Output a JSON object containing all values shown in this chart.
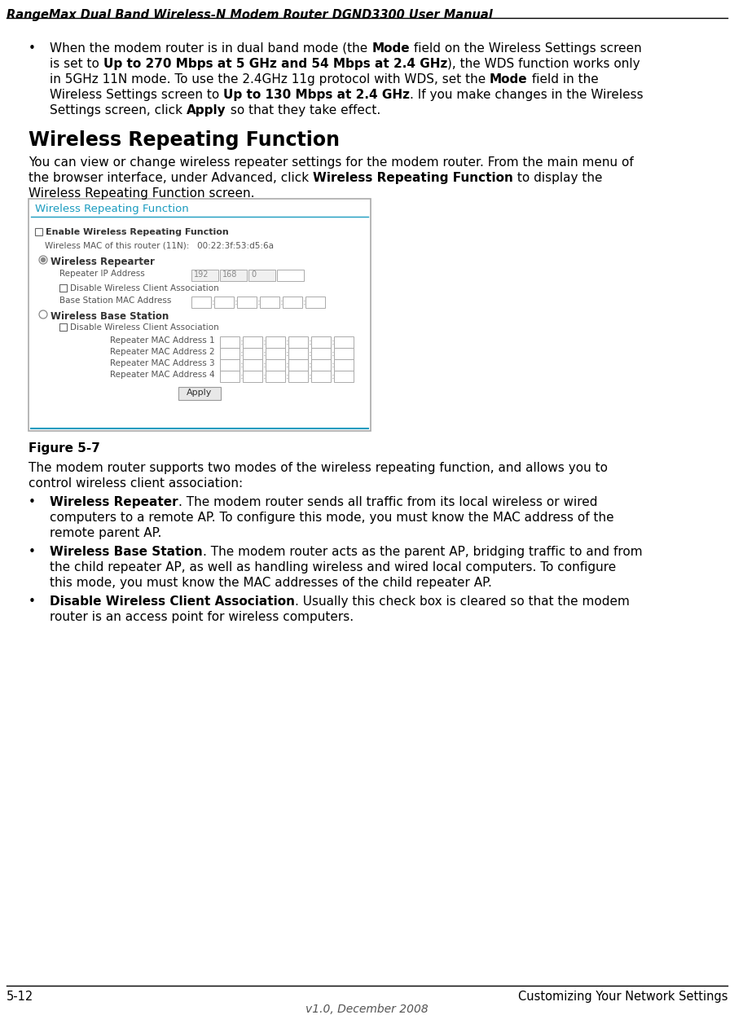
{
  "title_header": "RangeMax Dual Band Wireless-N Modem Router DGND3300 User Manual",
  "footer_left": "5-12",
  "footer_right": "Customizing Your Network Settings",
  "footer_center": "v1.0, December 2008",
  "section_title": "Wireless Repeating Function",
  "figure_label": "Figure 5-7",
  "bg_color": "#ffffff",
  "text_color": "#000000",
  "box_title_color": "#1a9bbf",
  "box_border_color": "#999999",
  "lm": 45,
  "rm": 870,
  "fs_body": 11,
  "fs_small": 8,
  "lh": 19
}
